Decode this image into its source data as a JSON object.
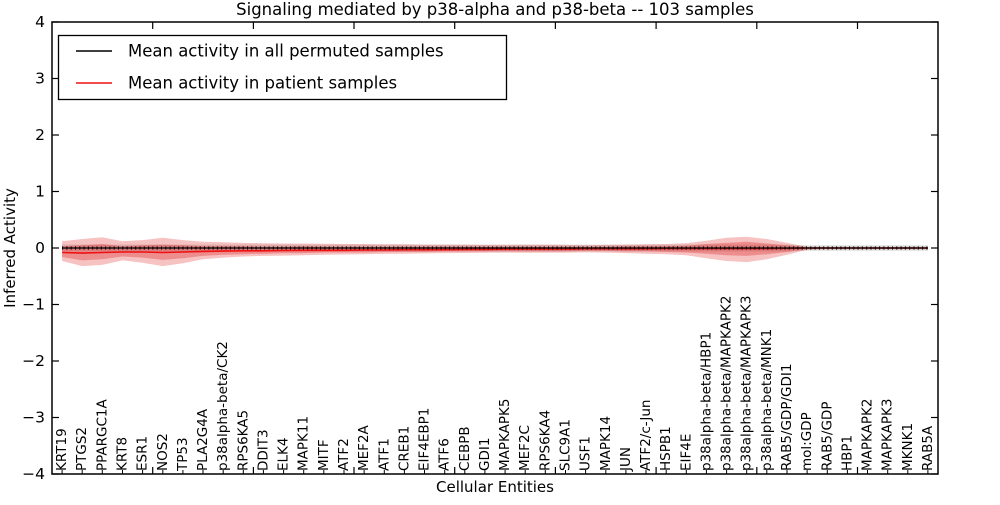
{
  "figure": {
    "background": "#ffffff"
  },
  "legend": {
    "position": "upper left",
    "entries": [
      {
        "label": "Mean activity in all permuted samples",
        "color": "#000000"
      },
      {
        "label": "Mean activity in patient samples",
        "color": "#ee1111"
      }
    ]
  },
  "chart_data": {
    "type": "line",
    "title": "Signaling mediated by p38-alpha and p38-beta -- 103 samples",
    "xlabel": "Cellular Entities",
    "ylabel": "Inferred Activity",
    "ylim": [
      -4,
      4
    ],
    "yticks": [
      -4,
      -3,
      -2,
      -1,
      0,
      1,
      2,
      3,
      4
    ],
    "ytick_labels": [
      "−4",
      "−3",
      "−2",
      "−1",
      "0",
      "1",
      "2",
      "3",
      "4"
    ],
    "x_major_tick_units": [
      5,
      10,
      15,
      20,
      25,
      30,
      35,
      40
    ],
    "grid": false,
    "legend_position": "upper left",
    "categories": [
      "KRT19",
      "PTGS2",
      "PPARGC1A",
      "KRT8",
      "ESR1",
      "NOS2",
      "TP53",
      "PLA2G4A",
      "p38alpha-beta/CK2",
      "RPS6KA5",
      "DDIT3",
      "ELK4",
      "MAPK11",
      "MITF",
      "ATF2",
      "MEF2A",
      "ATF1",
      "CREB1",
      "EIF4EBP1",
      "ATF6",
      "CEBPB",
      "GDI1",
      "MAPKAPK5",
      "MEF2C",
      "RPS6KA4",
      "SLC9A1",
      "USF1",
      "MAPK14",
      "JUN",
      "ATF2/c-Jun",
      "HSPB1",
      "EIF4E",
      "p38alpha-beta/HBP1",
      "p38alpha-beta/MAPKAPK2",
      "p38alpha-beta/MAPKAPK3",
      "p38alpha-beta/MNK1",
      "RAB5/GDP/GDI1",
      "mol:GDP",
      "RAB5/GDP",
      "HBP1",
      "MAPKAPK2",
      "MAPKAPK3",
      "MKNK1",
      "RAB5A"
    ],
    "series": [
      {
        "name": "Mean activity in all permuted samples",
        "color": "#000000",
        "values": [
          0,
          0,
          0,
          0,
          0,
          0,
          0,
          0,
          0,
          0,
          0,
          0,
          0,
          0,
          0,
          0,
          0,
          0,
          0,
          0,
          0,
          0,
          0,
          0,
          0,
          0,
          0,
          0,
          0,
          0,
          0,
          0,
          0,
          0,
          0,
          0,
          0,
          0,
          0,
          0,
          0,
          0,
          0,
          0
        ]
      },
      {
        "name": "Mean activity in patient samples",
        "color": "#ee1111",
        "values": [
          -0.08,
          -0.09,
          -0.08,
          -0.07,
          -0.07,
          -0.08,
          -0.07,
          -0.06,
          -0.055,
          -0.05,
          -0.05,
          -0.045,
          -0.04,
          -0.04,
          -0.04,
          -0.035,
          -0.035,
          -0.03,
          -0.03,
          -0.03,
          -0.025,
          -0.025,
          -0.02,
          -0.02,
          -0.02,
          -0.02,
          -0.015,
          -0.015,
          -0.015,
          -0.015,
          -0.01,
          -0.01,
          -0.01,
          -0.01,
          -0.01,
          -0.01,
          -0.005,
          0,
          0,
          0,
          0,
          0,
          0,
          0
        ]
      }
    ],
    "bands": [
      {
        "name": "permuted-std",
        "color": "rgba(80,80,80,0.20)",
        "upper": [
          0.06,
          0.06,
          0.06,
          0.06,
          0.06,
          0.06,
          0.06,
          0.06,
          0.06,
          0.06,
          0.06,
          0.06,
          0.06,
          0.06,
          0.06,
          0.06,
          0.06,
          0.06,
          0.06,
          0.06,
          0.06,
          0.06,
          0.06,
          0.06,
          0.06,
          0.06,
          0.06,
          0.06,
          0.06,
          0.06,
          0.06,
          0.06,
          0.06,
          0.06,
          0.06,
          0.06,
          0.06,
          0.05,
          0.05,
          0.05,
          0.05,
          0.05,
          0.05,
          0.05
        ],
        "lower": [
          -0.06,
          -0.06,
          -0.06,
          -0.06,
          -0.06,
          -0.06,
          -0.06,
          -0.06,
          -0.06,
          -0.06,
          -0.06,
          -0.06,
          -0.06,
          -0.06,
          -0.06,
          -0.06,
          -0.06,
          -0.06,
          -0.06,
          -0.06,
          -0.06,
          -0.06,
          -0.06,
          -0.06,
          -0.06,
          -0.06,
          -0.06,
          -0.06,
          -0.06,
          -0.06,
          -0.06,
          -0.06,
          -0.06,
          -0.06,
          -0.06,
          -0.06,
          -0.06,
          -0.05,
          -0.05,
          -0.05,
          -0.05,
          -0.05,
          -0.05,
          -0.05
        ]
      },
      {
        "name": "patient-std-outer",
        "color": "rgba(220,20,20,0.26)",
        "upper": [
          0.12,
          0.16,
          0.19,
          0.12,
          0.14,
          0.18,
          0.14,
          0.11,
          0.1,
          0.09,
          0.085,
          0.08,
          0.08,
          0.075,
          0.07,
          0.07,
          0.065,
          0.065,
          0.06,
          0.06,
          0.058,
          0.055,
          0.055,
          0.058,
          0.058,
          0.055,
          0.05,
          0.055,
          0.06,
          0.065,
          0.07,
          0.085,
          0.13,
          0.18,
          0.2,
          0.16,
          0.09,
          0.02,
          0.015,
          0.015,
          0.015,
          0.015,
          0.015,
          0.015
        ],
        "lower": [
          -0.23,
          -0.32,
          -0.3,
          -0.22,
          -0.26,
          -0.32,
          -0.27,
          -0.2,
          -0.17,
          -0.15,
          -0.14,
          -0.135,
          -0.13,
          -0.12,
          -0.115,
          -0.11,
          -0.105,
          -0.1,
          -0.095,
          -0.09,
          -0.088,
          -0.085,
          -0.082,
          -0.085,
          -0.085,
          -0.082,
          -0.078,
          -0.082,
          -0.09,
          -0.1,
          -0.11,
          -0.13,
          -0.18,
          -0.23,
          -0.25,
          -0.2,
          -0.12,
          -0.03,
          -0.02,
          -0.02,
          -0.02,
          -0.02,
          -0.02,
          -0.02
        ]
      },
      {
        "name": "patient-std-inner",
        "color": "rgba(220,20,20,0.30)",
        "upper": [
          0.03,
          0.05,
          0.07,
          0.03,
          0.05,
          0.06,
          0.05,
          0.03,
          0.03,
          0.03,
          0.02,
          0.02,
          0.03,
          0.02,
          0.02,
          0.02,
          0.02,
          0.02,
          0.02,
          0.02,
          0.02,
          0.02,
          0.02,
          0.02,
          0.02,
          0.02,
          0.02,
          0.02,
          0.03,
          0.03,
          0.03,
          0.04,
          0.07,
          0.09,
          0.11,
          0.08,
          0.05,
          0.01,
          0.01,
          0.01,
          0.01,
          0.01,
          0.01,
          0.01
        ],
        "lower": [
          -0.16,
          -0.22,
          -0.2,
          -0.15,
          -0.17,
          -0.21,
          -0.18,
          -0.14,
          -0.12,
          -0.11,
          -0.1,
          -0.09,
          -0.09,
          -0.08,
          -0.08,
          -0.08,
          -0.07,
          -0.07,
          -0.07,
          -0.06,
          -0.06,
          -0.06,
          -0.06,
          -0.06,
          -0.06,
          -0.06,
          -0.05,
          -0.05,
          -0.06,
          -0.06,
          -0.07,
          -0.08,
          -0.1,
          -0.13,
          -0.14,
          -0.11,
          -0.07,
          -0.02,
          -0.01,
          -0.01,
          -0.01,
          -0.01,
          -0.01,
          -0.01
        ]
      }
    ]
  }
}
